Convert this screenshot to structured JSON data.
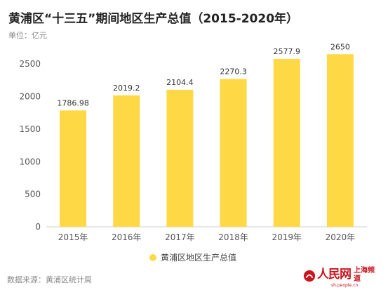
{
  "title": "黄浦区“十三五”期间地区生产总值（2015-2020年）",
  "unit": "单位：亿元",
  "source": "数据来源：黄浦区统计局",
  "logo": {
    "name": "人民网",
    "channel": "上海频道",
    "url": "sh.people.cn"
  },
  "colors": {
    "bar": "#FFD945",
    "axis": "#cccccc",
    "tick_text": "#555555",
    "logo_red": "#c9151e"
  },
  "chart_data": {
    "type": "bar",
    "title": "黄浦区“十三五”期间地区生产总值（2015-2020年）",
    "ylabel": "单位：亿元",
    "xlabel": "",
    "categories": [
      "2015年",
      "2016年",
      "2017年",
      "2018年",
      "2019年",
      "2020年"
    ],
    "series": [
      {
        "name": "黄浦区地区生产总值",
        "values": [
          1786.98,
          2019.2,
          2104.4,
          2270.3,
          2577.9,
          2650
        ]
      }
    ],
    "data_labels": [
      "1786.98",
      "2019.2",
      "2104.4",
      "2270.3",
      "2577.9",
      "2650"
    ],
    "y_ticks": [
      0,
      500,
      1000,
      1500,
      2000,
      2500
    ],
    "ylim": [
      0,
      2750
    ],
    "grid": false,
    "legend_position": "bottom-center"
  }
}
